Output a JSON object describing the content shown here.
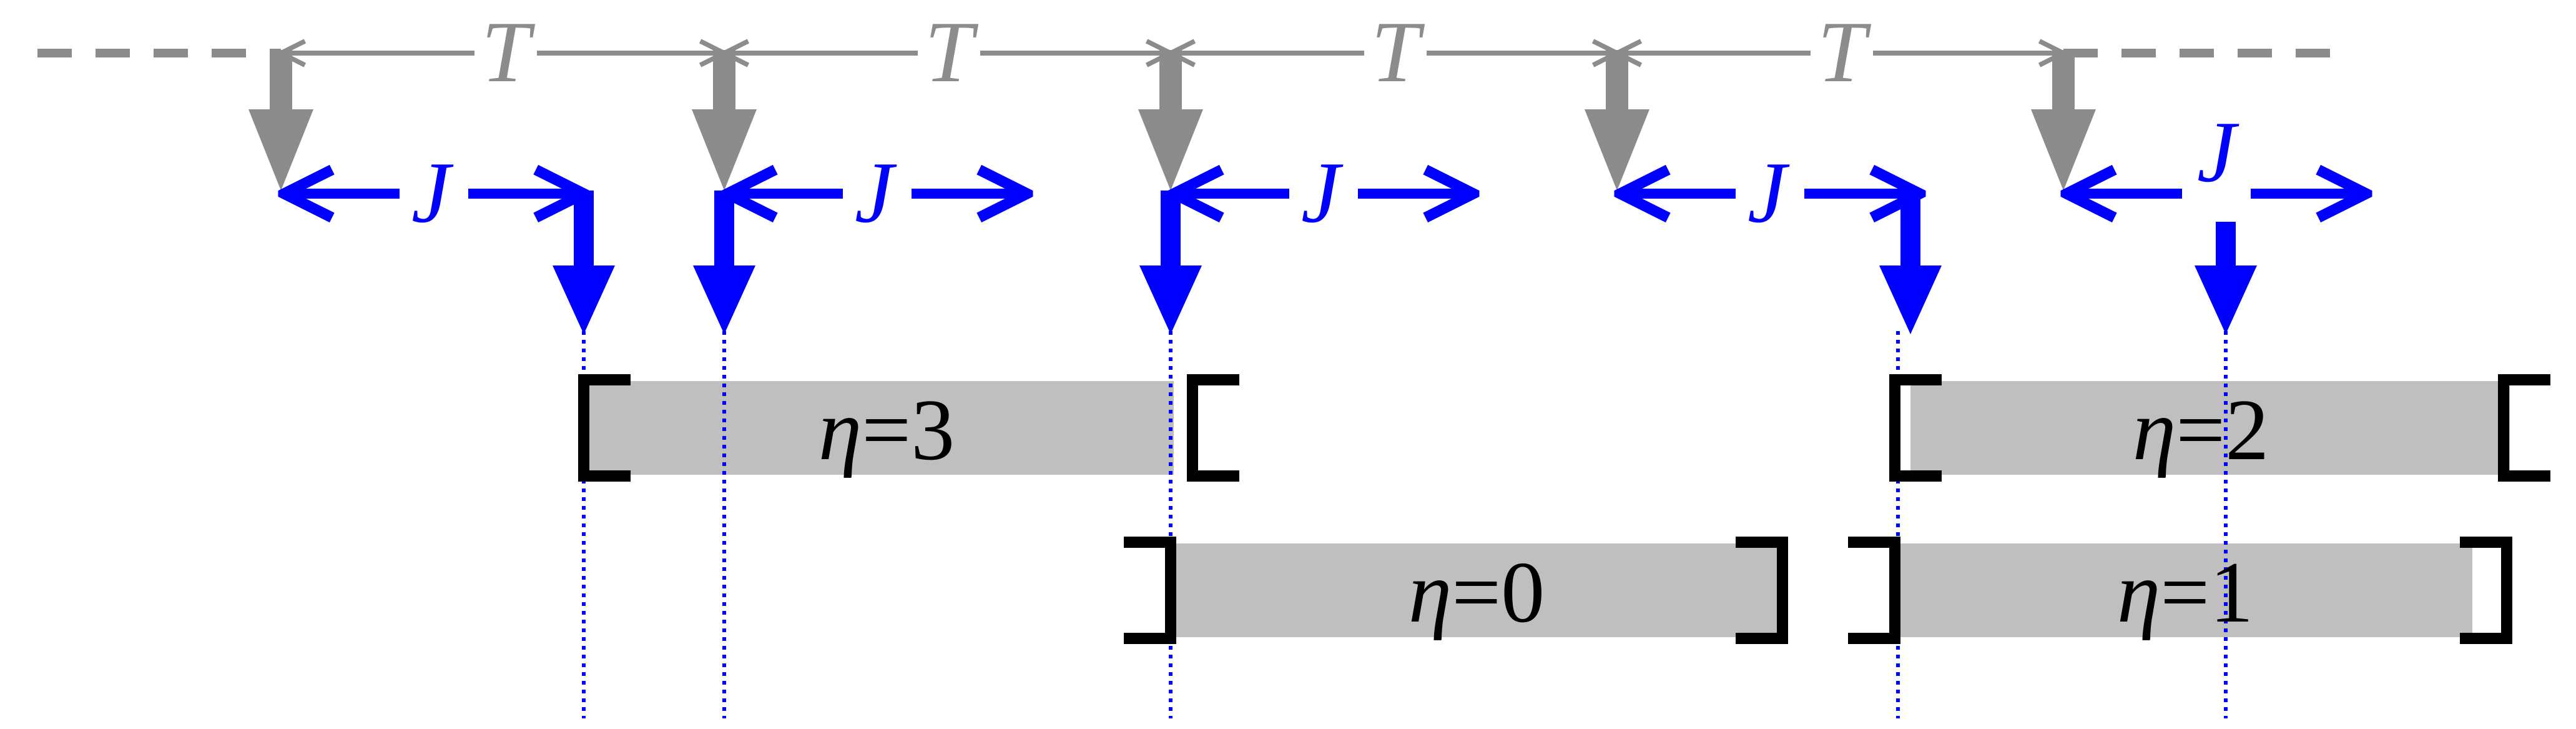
{
  "colors": {
    "timeline": "#8c8c8c",
    "jitter": "#0000ff",
    "bar_fill": "#bfbfbf",
    "bracket": "#000000",
    "background": "#ffffff"
  },
  "labels": {
    "period": "T",
    "jitter": "J",
    "eta_symbol": "η",
    "equals": "="
  },
  "bars": [
    {
      "id": "eta3",
      "value": "3"
    },
    {
      "id": "eta0",
      "value": "0"
    },
    {
      "id": "eta2",
      "value": "2"
    },
    {
      "id": "eta1",
      "value": "1"
    }
  ]
}
